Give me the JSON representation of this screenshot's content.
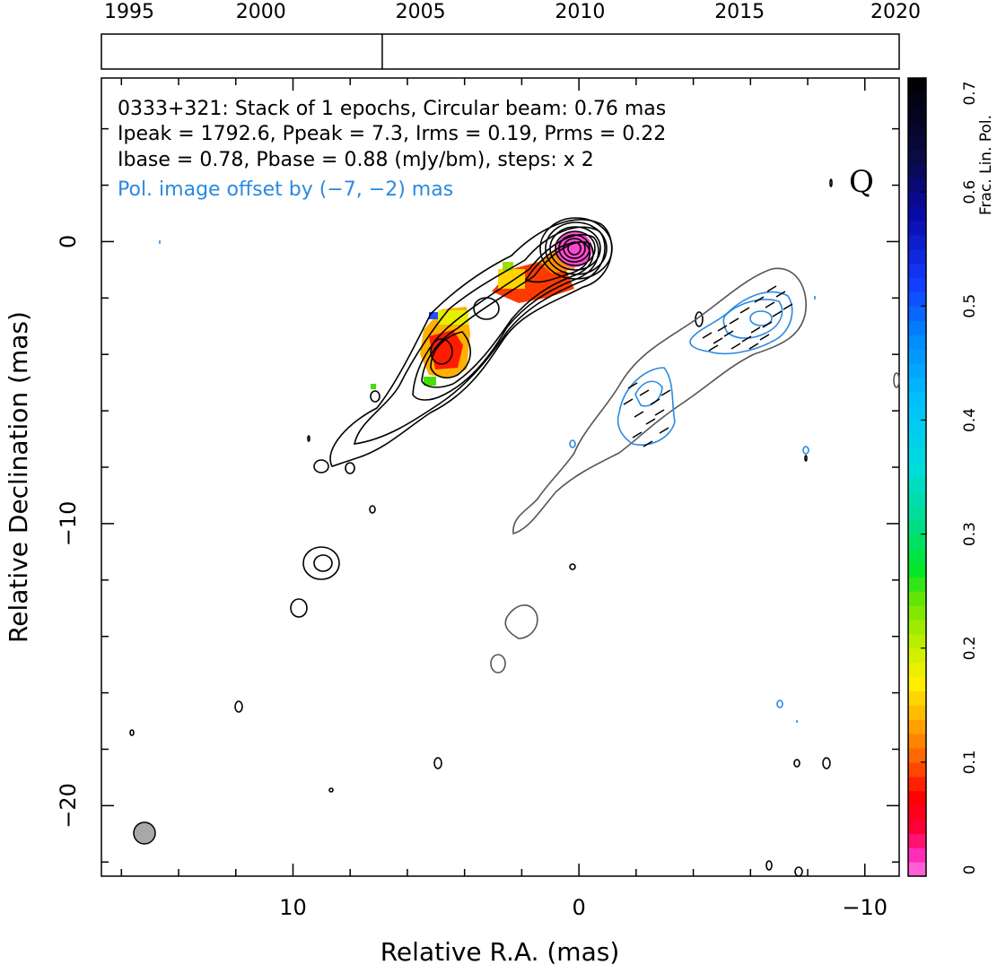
{
  "timeline": {
    "years": [
      "1995",
      "2000",
      "2005",
      "2010",
      "2015",
      "2020"
    ],
    "year_values": [
      1995,
      2000,
      2005,
      2010,
      2015,
      2020
    ],
    "range": [
      1995,
      2020
    ],
    "epoch_markers": [
      2003.8
    ]
  },
  "info": {
    "line1": "0333+321: Stack of 1 epochs, Circular beam: 0.76 mas",
    "line2": "Ipeak = 1792.6, Ppeak = 7.3, Irms = 0.19, Prms = 0.22",
    "line3": "Ibase = 0.78, Pbase = 0.88 (mJy/bm), steps: x 2",
    "line4": "Pol. image offset by (−7, −2) mas",
    "stokes": "Q"
  },
  "chart_data": {
    "type": "heatmap",
    "xlabel": "Relative R.A. (mas)",
    "ylabel": "Relative Declination (mas)",
    "xlim": [
      16.7,
      -11.2
    ],
    "ylim": [
      -22.5,
      5.8
    ],
    "x_ticks": [
      10,
      0,
      -10
    ],
    "x_tick_labels": [
      "10",
      "0",
      "−10"
    ],
    "y_ticks": [
      0,
      -10,
      -20
    ],
    "y_tick_labels": [
      "0",
      "−10",
      "−20"
    ],
    "colorbar": {
      "label": "Frac. Lin. Pol.",
      "range": [
        0,
        0.7
      ],
      "ticks": [
        0,
        0.1,
        0.2,
        0.3,
        0.4,
        0.5,
        0.6,
        0.7
      ],
      "tick_labels": [
        "0",
        "0.1",
        "0.2",
        "0.3",
        "0.4",
        "0.5",
        "0.6",
        "0.7"
      ]
    },
    "intensity_contour_peak_mJy_per_beam": 1792.6,
    "polarized_peak_mJy_per_beam": 7.3,
    "beam_mas": 0.76,
    "core_position": [
      0,
      0
    ],
    "fractional_polarization_regions": [
      {
        "x": 1.5,
        "y": -1.2,
        "value": 0.1
      },
      {
        "x": 0.3,
        "y": -0.4,
        "value": 0.02
      },
      {
        "x": 4.9,
        "y": -3.6,
        "value": 0.06
      },
      {
        "x": 3.8,
        "y": -2.6,
        "value": 0.17
      },
      {
        "x": 5.3,
        "y": -2.4,
        "value": 0.5
      },
      {
        "x": 5.6,
        "y": -4.8,
        "value": 0.22
      }
    ]
  },
  "colors": {
    "intensity_contour": "#000000",
    "offset_intensity_contour": "#555555",
    "polarized_contour": "#2a8ae0",
    "beam_fill": "#a8a8a8"
  }
}
